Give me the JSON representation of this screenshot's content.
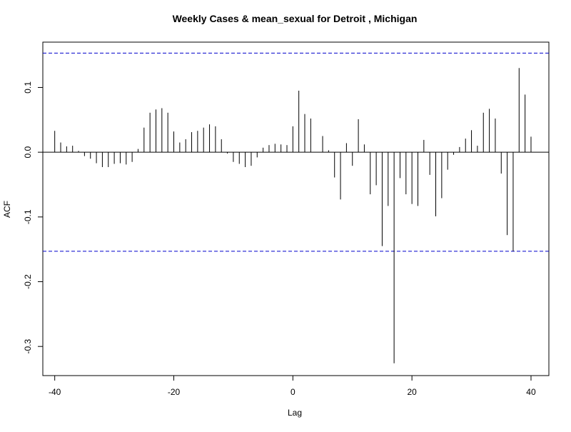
{
  "chart_data": {
    "type": "bar",
    "title": "Weekly Cases & mean_sexual for Detroit , Michigan",
    "xlabel": "Lag",
    "ylabel": "ACF",
    "xlim": [
      -42,
      43
    ],
    "ylim": [
      -0.345,
      0.17
    ],
    "xticks": [
      -40,
      -20,
      0,
      20,
      40
    ],
    "yticks": [
      -0.3,
      -0.2,
      -0.1,
      0.0,
      0.1
    ],
    "xtick_labels": [
      "-40",
      "-20",
      "0",
      "20",
      "40"
    ],
    "ytick_labels": [
      "-0.3",
      "-0.2",
      "-0.1",
      "0.0",
      "0.1"
    ],
    "confidence_bounds": [
      0.153,
      -0.153
    ],
    "lags": [
      -40,
      -39,
      -38,
      -37,
      -36,
      -35,
      -34,
      -33,
      -32,
      -31,
      -30,
      -29,
      -28,
      -27,
      -26,
      -25,
      -24,
      -23,
      -22,
      -21,
      -20,
      -19,
      -18,
      -17,
      -16,
      -15,
      -14,
      -13,
      -12,
      -11,
      -10,
      -9,
      -8,
      -7,
      -6,
      -5,
      -4,
      -3,
      -2,
      -1,
      0,
      1,
      2,
      3,
      4,
      5,
      6,
      7,
      8,
      9,
      10,
      11,
      12,
      13,
      14,
      15,
      16,
      17,
      18,
      19,
      20,
      21,
      22,
      23,
      24,
      25,
      26,
      27,
      28,
      29,
      30,
      31,
      32,
      33,
      34,
      35,
      36,
      37,
      38,
      39,
      40
    ],
    "values": [
      0.033,
      0.015,
      0.009,
      0.01,
      0.002,
      -0.006,
      -0.01,
      -0.017,
      -0.023,
      -0.023,
      -0.018,
      -0.017,
      -0.019,
      -0.015,
      0.005,
      0.038,
      0.061,
      0.066,
      0.068,
      0.061,
      0.032,
      0.015,
      0.02,
      0.031,
      0.033,
      0.038,
      0.043,
      0.04,
      0.02,
      -0.002,
      -0.015,
      -0.018,
      -0.023,
      -0.021,
      -0.008,
      0.007,
      0.011,
      0.013,
      0.012,
      0.011,
      0.04,
      0.095,
      0.059,
      0.052,
      0.0,
      0.025,
      0.003,
      -0.039,
      -0.073,
      0.014,
      -0.021,
      0.051,
      0.012,
      -0.065,
      -0.051,
      -0.145,
      -0.083,
      -0.326,
      -0.04,
      -0.065,
      -0.08,
      -0.083,
      0.019,
      -0.035,
      -0.099,
      -0.071,
      -0.027,
      -0.004,
      0.008,
      0.021,
      0.034,
      0.01,
      0.061,
      0.067,
      0.052,
      -0.033,
      -0.128,
      -0.153,
      0.13,
      0.089,
      0.024
    ],
    "colors": {
      "bars": "#000000",
      "bounds": "#0000cc",
      "frame": "#000000"
    }
  }
}
